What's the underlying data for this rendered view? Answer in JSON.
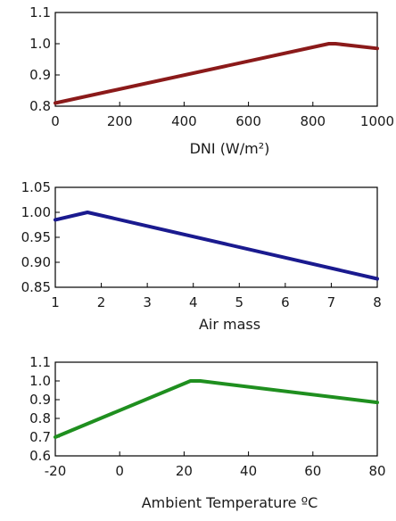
{
  "chart_data": [
    {
      "type": "line",
      "xlabel": "DNI (W/m²)",
      "ylabel": "",
      "xlim": [
        0,
        1000
      ],
      "ylim": [
        0.8,
        1.1
      ],
      "x_ticks": [
        0,
        200,
        400,
        600,
        800,
        1000
      ],
      "y_ticks": [
        0.8,
        0.9,
        1.0,
        1.1
      ],
      "x_tick_labels": [
        "0",
        "200",
        "400",
        "600",
        "800",
        "1000"
      ],
      "y_tick_labels": [
        "0.8",
        "0.9",
        "1.0",
        "1.1"
      ],
      "grid": false,
      "color": "#8b1a1a",
      "series": [
        {
          "x": [
            0,
            850,
            870,
            1000
          ],
          "y": [
            0.81,
            1.0,
            1.0,
            0.985
          ]
        }
      ]
    },
    {
      "type": "line",
      "xlabel": "Air mass",
      "ylabel": "",
      "xlim": [
        1,
        8
      ],
      "ylim": [
        0.85,
        1.05
      ],
      "x_ticks": [
        1,
        2,
        3,
        4,
        5,
        6,
        7,
        8
      ],
      "y_ticks": [
        0.85,
        0.9,
        0.95,
        1.0,
        1.05
      ],
      "x_tick_labels": [
        "1",
        "2",
        "3",
        "4",
        "5",
        "6",
        "7",
        "8"
      ],
      "y_tick_labels": [
        "0.85",
        "0.90",
        "0.95",
        "1.00",
        "1.05"
      ],
      "grid": false,
      "color": "#1a1a8f",
      "series": [
        {
          "x": [
            1,
            1.7,
            8
          ],
          "y": [
            0.985,
            1.0,
            0.867
          ]
        }
      ]
    },
    {
      "type": "line",
      "xlabel": "Ambient Temperature ºC",
      "ylabel": "",
      "xlim": [
        -20,
        80
      ],
      "ylim": [
        0.6,
        1.1
      ],
      "x_ticks": [
        -20,
        0,
        20,
        40,
        60,
        80
      ],
      "y_ticks": [
        0.6,
        0.7,
        0.8,
        0.9,
        1.0,
        1.1
      ],
      "x_tick_labels": [
        "-20",
        "0",
        "20",
        "40",
        "60",
        "80"
      ],
      "y_tick_labels": [
        "0.6",
        "0.7",
        "0.8",
        "0.9",
        "1.0",
        "1.1"
      ],
      "grid": false,
      "color": "#1f8f1f",
      "series": [
        {
          "x": [
            -20,
            22,
            25,
            80
          ],
          "y": [
            0.7,
            1.0,
            1.0,
            0.885
          ]
        }
      ]
    }
  ]
}
